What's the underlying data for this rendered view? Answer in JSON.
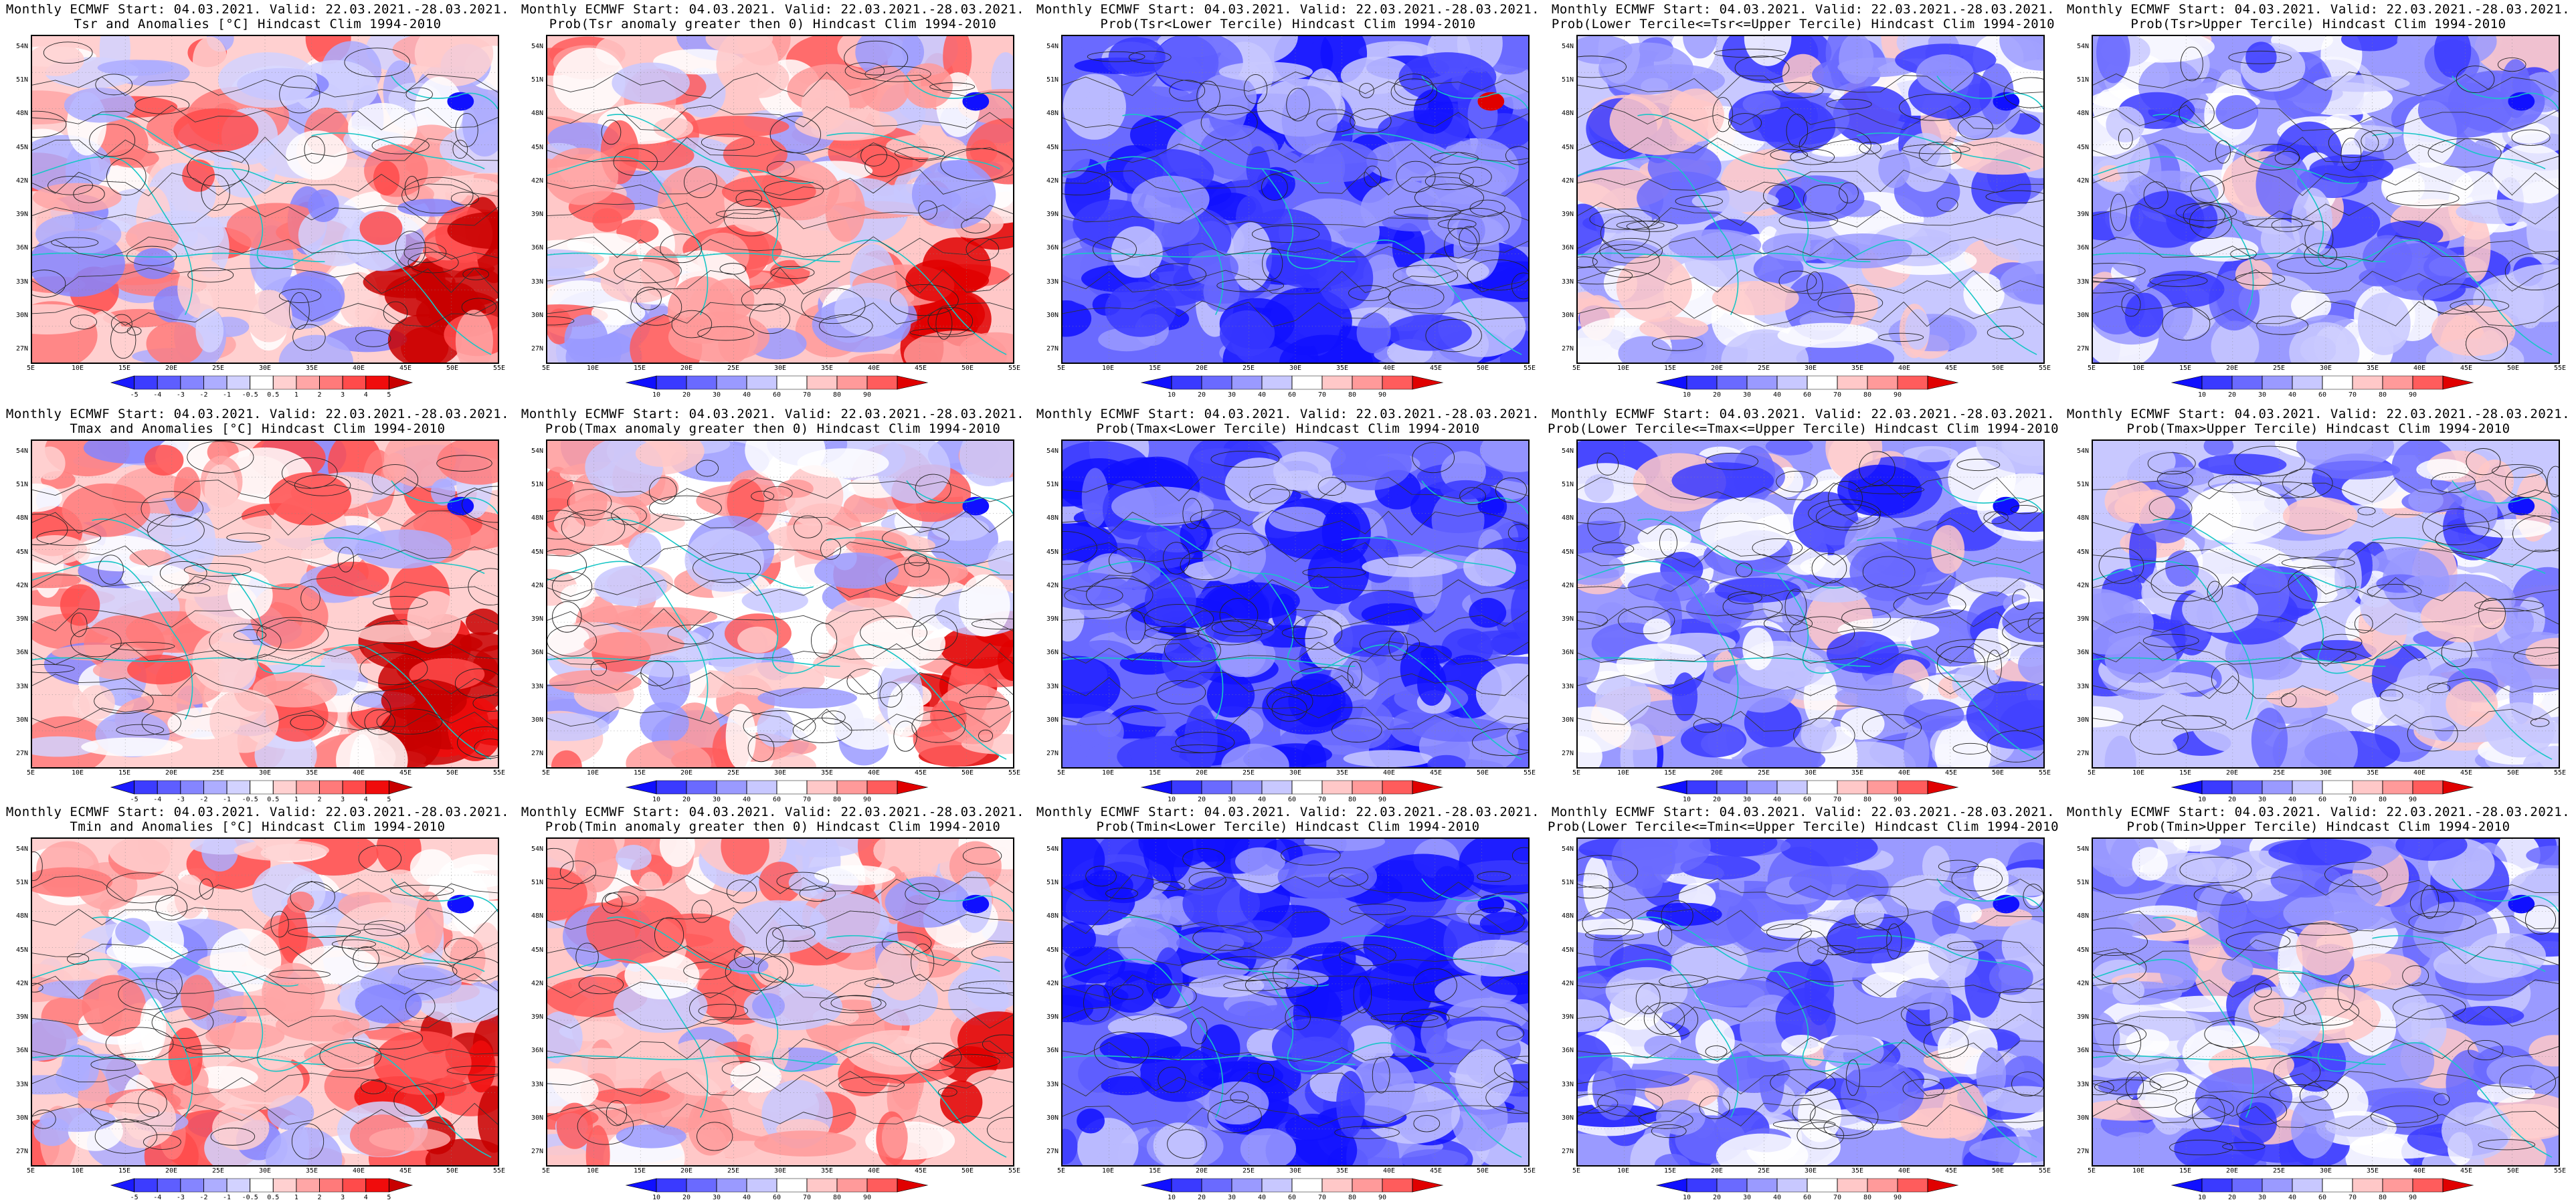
{
  "header_line": "Monthly ECMWF Start: 04.03.2021. Valid: 22.03.2021.-28.03.2021.",
  "lat_labels": [
    "54N",
    "51N",
    "48N",
    "45N",
    "42N",
    "39N",
    "36N",
    "33N",
    "30N",
    "27N"
  ],
  "lon_labels": [
    "5E",
    "10E",
    "15E",
    "20E",
    "25E",
    "30E",
    "35E",
    "40E",
    "45E",
    "50E",
    "55E"
  ],
  "rows": [
    {
      "panels": [
        {
          "title": "Tsr and Anomalies [°C] Hindcast Clim 1994-2010",
          "kind": "anomaly",
          "bias": 0.55,
          "seed": 11
        },
        {
          "title": "Prob(Tsr anomaly greater then 0) Hindcast Clim 1994-2010",
          "kind": "prob",
          "bias": 0.62,
          "seed": 12
        },
        {
          "title": "Prob(Tsr<Lower Tercile) Hindcast Clim 1994-2010",
          "kind": "prob",
          "bias": 0.22,
          "seed": 13
        },
        {
          "title": "Prob(Lower Tercile<=Tsr<=Upper Tercile) Hindcast Clim 1994-2010",
          "kind": "prob",
          "bias": 0.4,
          "seed": 14
        },
        {
          "title": "Prob(Tsr>Upper Tercile) Hindcast Clim 1994-2010",
          "kind": "prob",
          "bias": 0.38,
          "seed": 15
        }
      ]
    },
    {
      "panels": [
        {
          "title": "Tmax and Anomalies [°C] Hindcast Clim 1994-2010",
          "kind": "anomaly",
          "bias": 0.55,
          "seed": 21
        },
        {
          "title": "Prob(Tmax anomaly greater then 0) Hindcast Clim 1994-2010",
          "kind": "prob",
          "bias": 0.6,
          "seed": 22
        },
        {
          "title": "Prob(Tmax<Lower Tercile) Hindcast Clim 1994-2010",
          "kind": "prob",
          "bias": 0.2,
          "seed": 23
        },
        {
          "title": "Prob(Lower Tercile<=Tmax<=Upper Tercile) Hindcast Clim 1994-2010",
          "kind": "prob",
          "bias": 0.36,
          "seed": 24
        },
        {
          "title": "Prob(Tmax>Upper Tercile) Hindcast Clim 1994-2010",
          "kind": "prob",
          "bias": 0.4,
          "seed": 25
        }
      ]
    },
    {
      "panels": [
        {
          "title": "Tmin and Anomalies [°C] Hindcast Clim 1994-2010",
          "kind": "anomaly",
          "bias": 0.55,
          "seed": 31
        },
        {
          "title": "Prob(Tmin anomaly greater then 0) Hindcast Clim 1994-2010",
          "kind": "prob",
          "bias": 0.62,
          "seed": 32
        },
        {
          "title": "Prob(Tmin<Lower Tercile) Hindcast Clim 1994-2010",
          "kind": "prob",
          "bias": 0.18,
          "seed": 33
        },
        {
          "title": "Prob(Lower Tercile<=Tmin<=Upper Tercile) Hindcast Clim 1994-2010",
          "kind": "prob",
          "bias": 0.36,
          "seed": 34
        },
        {
          "title": "Prob(Tmin>Upper Tercile) Hindcast Clim 1994-2010",
          "kind": "prob",
          "bias": 0.38,
          "seed": 35
        }
      ]
    }
  ],
  "colorbars": {
    "anomaly": {
      "labels": [
        "-5",
        "-4",
        "-3",
        "-2",
        "-1",
        "-0.5",
        "0.5",
        "1",
        "2",
        "3",
        "4",
        "5"
      ],
      "colors": [
        "#1a1aff",
        "#3c3cff",
        "#5e5eff",
        "#8585ff",
        "#adadff",
        "#d2d2ff",
        "#ffffff",
        "#ffd0d0",
        "#ffa6a6",
        "#ff7a7a",
        "#ff4b4b",
        "#f00c0c",
        "#c80000"
      ]
    },
    "prob": {
      "labels": [
        "10",
        "20",
        "30",
        "40",
        "60",
        "70",
        "80",
        "90"
      ],
      "colors": [
        "#1010ff",
        "#3a3aff",
        "#6a6aff",
        "#9a9aff",
        "#c8c8ff",
        "#ffffff",
        "#ffc8c8",
        "#ff9a9a",
        "#ff5c5c",
        "#e00000"
      ]
    }
  }
}
